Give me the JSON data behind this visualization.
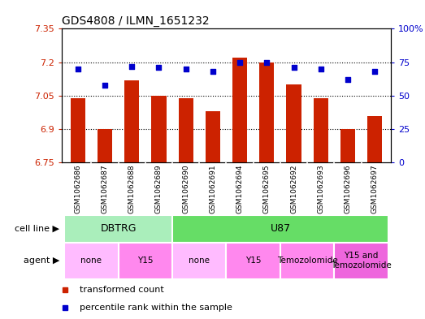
{
  "title": "GDS4808 / ILMN_1651232",
  "samples": [
    "GSM1062686",
    "GSM1062687",
    "GSM1062688",
    "GSM1062689",
    "GSM1062690",
    "GSM1062691",
    "GSM1062694",
    "GSM1062695",
    "GSM1062692",
    "GSM1062693",
    "GSM1062696",
    "GSM1062697"
  ],
  "bar_values": [
    7.04,
    6.9,
    7.12,
    7.05,
    7.04,
    6.98,
    7.22,
    7.2,
    7.1,
    7.04,
    6.9,
    6.96
  ],
  "dot_values": [
    70,
    58,
    72,
    71,
    70,
    68,
    75,
    75,
    71,
    70,
    62,
    68
  ],
  "bar_color": "#cc2200",
  "dot_color": "#0000cc",
  "ylim_left": [
    6.75,
    7.35
  ],
  "ylim_right": [
    0,
    100
  ],
  "yticks_left": [
    6.75,
    6.9,
    7.05,
    7.2,
    7.35
  ],
  "yticks_right": [
    0,
    25,
    50,
    75,
    100
  ],
  "ytick_labels_left": [
    "6.75",
    "6.9",
    "7.05",
    "7.2",
    "7.35"
  ],
  "ytick_labels_right": [
    "0",
    "25",
    "50",
    "75",
    "100%"
  ],
  "hlines": [
    6.9,
    7.05,
    7.2
  ],
  "cell_line_label": "cell line",
  "agent_label": "agent",
  "cell_line_groups": [
    {
      "label": "DBTRG",
      "start": 0,
      "end": 3,
      "color": "#aaeebb"
    },
    {
      "label": "U87",
      "start": 4,
      "end": 11,
      "color": "#66dd66"
    }
  ],
  "agent_groups": [
    {
      "label": "none",
      "start": 0,
      "end": 1,
      "color": "#ffbbff"
    },
    {
      "label": "Y15",
      "start": 2,
      "end": 3,
      "color": "#ff88ee"
    },
    {
      "label": "none",
      "start": 4,
      "end": 5,
      "color": "#ffbbff"
    },
    {
      "label": "Y15",
      "start": 6,
      "end": 7,
      "color": "#ff88ee"
    },
    {
      "label": "Temozolomide",
      "start": 8,
      "end": 9,
      "color": "#ff88ee"
    },
    {
      "label": "Y15 and\nTemozolomide",
      "start": 10,
      "end": 11,
      "color": "#ee66dd"
    }
  ],
  "legend_bar_label": "transformed count",
  "legend_dot_label": "percentile rank within the sample",
  "plot_bg_color": "#ffffff",
  "label_row_bg": "#dddddd"
}
